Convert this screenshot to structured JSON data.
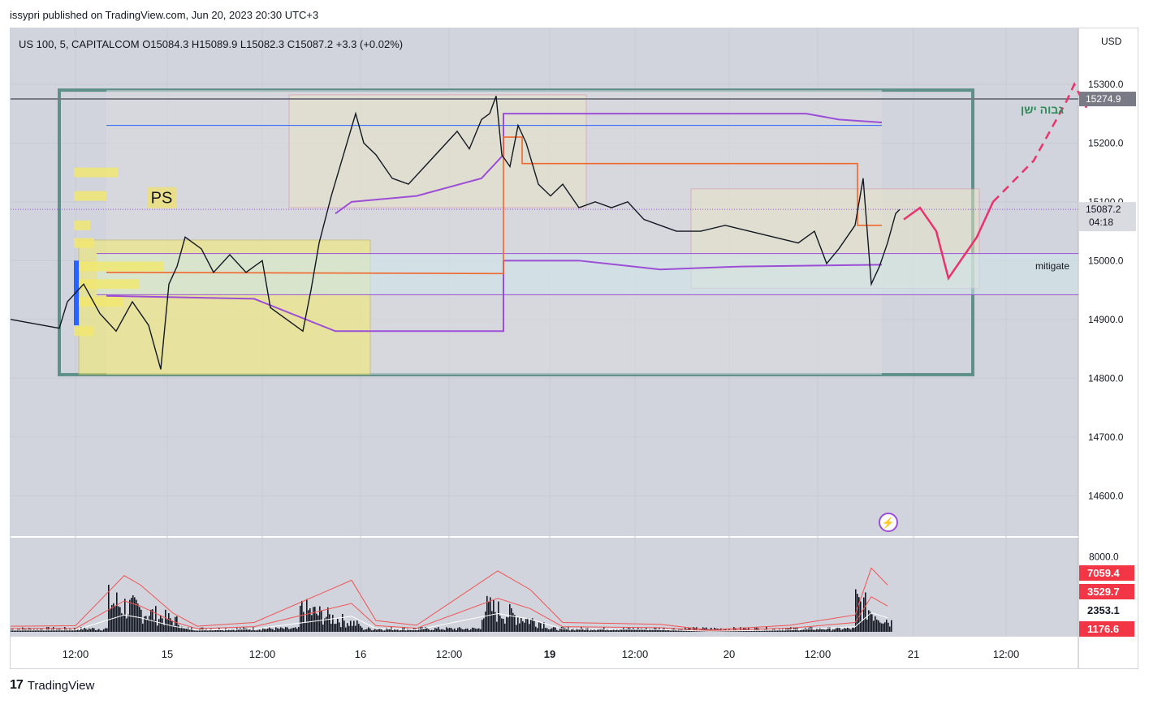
{
  "credit": "issypri published on TradingView.com, Jun 20, 2023 20:30 UTC+3",
  "legend": "US 100, 5, CAPITALCOM  O15084.3  H15089.9  L15082.3  C15087.2  +3.3 (+0.02%)",
  "currency": "USD",
  "brand": "TradingView",
  "annotations": {
    "ps": "PS",
    "mitigate": "mitigate",
    "old_high": "גבוה ישן"
  },
  "price_badges": {
    "top_line": "15274.9",
    "last": "15087.2",
    "countdown": "04:18"
  },
  "volume_badges": {
    "cut": "8000.0",
    "v1": "7059.4",
    "v2": "3529.7",
    "v3": "2353.1",
    "v4": "1176.6"
  },
  "colors": {
    "frame_green": "#5e8f88",
    "yellow_box": "#f5ec6a",
    "pink_box": "#d98ca4",
    "purple": "#9c4fd6",
    "orange": "#f0682e",
    "forecast": "#e8336d",
    "badge_red": "#f23645"
  },
  "chart_data": {
    "type": "line",
    "title": "US 100, 5, CAPITALCOM",
    "ylabel": "USD",
    "ylim": [
      14530,
      15395
    ],
    "y_ticks": [
      14600,
      14700,
      14800,
      14900,
      15000,
      15100,
      15200,
      15300
    ],
    "x_ticks": [
      "12:00",
      "15",
      "12:00",
      "16",
      "12:00",
      "19",
      "12:00",
      "20",
      "12:00",
      "21",
      "12:00"
    ],
    "ohlc": {
      "open": 15084.3,
      "high": 15089.9,
      "low": 15082.3,
      "close": 15087.2,
      "change": 3.3,
      "change_pct": 0.02
    },
    "price_path": [
      [
        0,
        14900
      ],
      [
        60,
        14885
      ],
      [
        70,
        14930
      ],
      [
        90,
        14960
      ],
      [
        110,
        14910
      ],
      [
        130,
        14880
      ],
      [
        150,
        14930
      ],
      [
        170,
        14890
      ],
      [
        185,
        14815
      ],
      [
        195,
        14960
      ],
      [
        205,
        14990
      ],
      [
        215,
        15040
      ],
      [
        235,
        15020
      ],
      [
        250,
        14980
      ],
      [
        270,
        15010
      ],
      [
        290,
        14980
      ],
      [
        310,
        15000
      ],
      [
        320,
        14920
      ],
      [
        340,
        14900
      ],
      [
        360,
        14880
      ],
      [
        370,
        14950
      ],
      [
        380,
        15030
      ],
      [
        395,
        15110
      ],
      [
        410,
        15180
      ],
      [
        425,
        15250
      ],
      [
        435,
        15200
      ],
      [
        450,
        15180
      ],
      [
        470,
        15140
      ],
      [
        490,
        15130
      ],
      [
        510,
        15160
      ],
      [
        530,
        15190
      ],
      [
        550,
        15220
      ],
      [
        565,
        15190
      ],
      [
        580,
        15240
      ],
      [
        590,
        15250
      ],
      [
        598,
        15280
      ],
      [
        605,
        15180
      ],
      [
        615,
        15160
      ],
      [
        625,
        15230
      ],
      [
        635,
        15200
      ],
      [
        650,
        15130
      ],
      [
        665,
        15110
      ],
      [
        680,
        15130
      ],
      [
        700,
        15090
      ],
      [
        720,
        15100
      ],
      [
        740,
        15090
      ],
      [
        760,
        15100
      ],
      [
        780,
        15070
      ],
      [
        800,
        15060
      ],
      [
        820,
        15050
      ],
      [
        850,
        15050
      ],
      [
        880,
        15060
      ],
      [
        910,
        15050
      ],
      [
        940,
        15040
      ],
      [
        970,
        15030
      ],
      [
        990,
        15050
      ],
      [
        1005,
        14995
      ],
      [
        1020,
        15020
      ],
      [
        1040,
        15060
      ],
      [
        1050,
        15140
      ],
      [
        1060,
        14960
      ],
      [
        1070,
        14990
      ],
      [
        1080,
        15030
      ],
      [
        1090,
        15080
      ],
      [
        1095,
        15087
      ]
    ],
    "forecast_path": [
      [
        1100,
        15070
      ],
      [
        1120,
        15090
      ],
      [
        1140,
        15050
      ],
      [
        1155,
        14970
      ],
      [
        1170,
        15000
      ],
      [
        1190,
        15040
      ],
      [
        1210,
        15100
      ]
    ],
    "forecast_dashed": [
      [
        1210,
        15100
      ],
      [
        1260,
        15170
      ],
      [
        1300,
        15270
      ],
      [
        1310,
        15300
      ],
      [
        1325,
        15260
      ]
    ],
    "levels": [
      {
        "name": "top-line",
        "price": 15274.9
      },
      {
        "name": "blue-line",
        "price": 15230
      },
      {
        "name": "mitigate-top",
        "price": 15012
      },
      {
        "name": "mitigate-bottom",
        "price": 14942
      }
    ],
    "volume_ticks": [
      8000.0,
      7059.4,
      3529.7,
      2353.1,
      1176.6
    ]
  }
}
